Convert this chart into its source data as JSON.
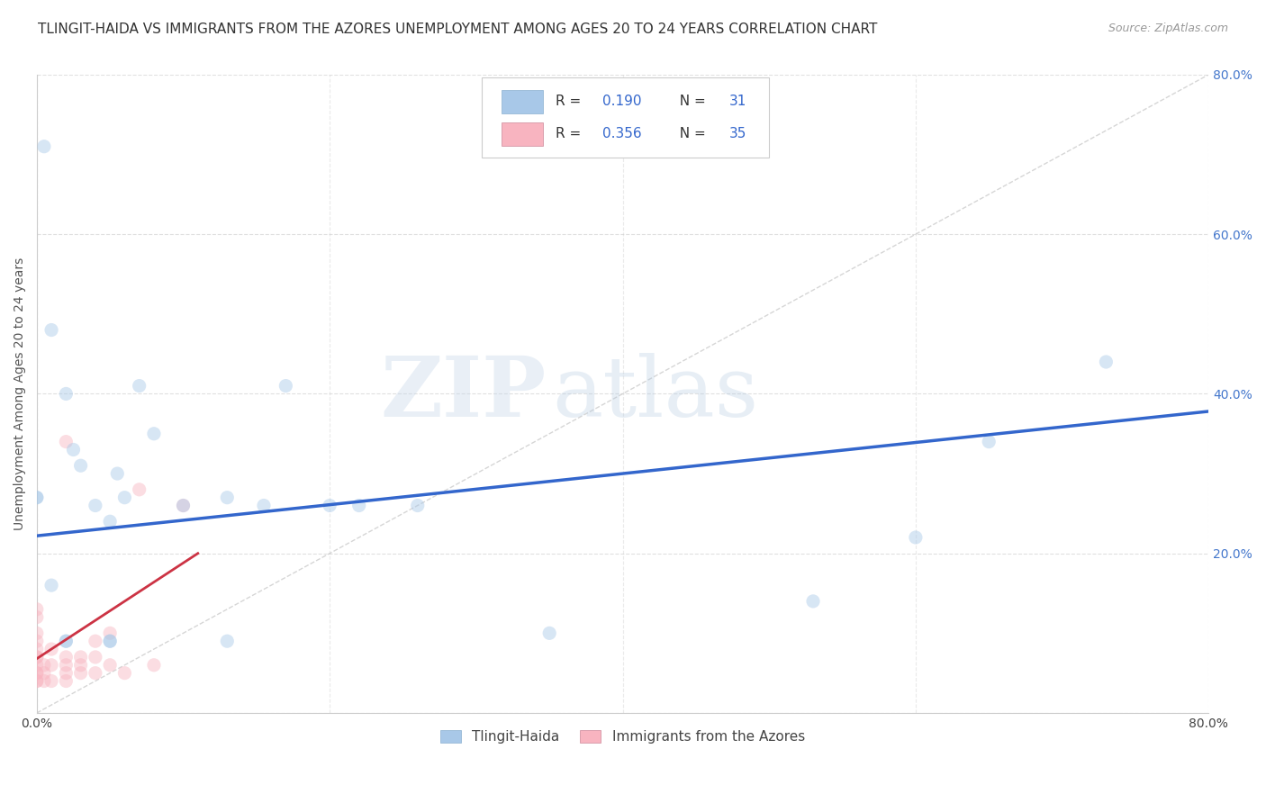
{
  "title": "TLINGIT-HAIDA VS IMMIGRANTS FROM THE AZORES UNEMPLOYMENT AMONG AGES 20 TO 24 YEARS CORRELATION CHART",
  "source": "Source: ZipAtlas.com",
  "ylabel": "Unemployment Among Ages 20 to 24 years",
  "xlim": [
    0,
    0.8
  ],
  "ylim": [
    0,
    0.8
  ],
  "xticks": [
    0.0,
    0.2,
    0.4,
    0.6,
    0.8
  ],
  "yticks": [
    0.0,
    0.2,
    0.4,
    0.6,
    0.8
  ],
  "xtick_labels": [
    "0.0%",
    "",
    "",
    "",
    "80.0%"
  ],
  "ytick_labels_left": [
    "",
    "",
    "",
    "",
    ""
  ],
  "ytick_labels_right": [
    "",
    "20.0%",
    "40.0%",
    "60.0%",
    "80.0%"
  ],
  "watermark_zip": "ZIP",
  "watermark_atlas": "atlas",
  "background_color": "#ffffff",
  "tlingit_haida": {
    "color": "#a8c8e8",
    "edge_color": "#6699cc",
    "regression_color": "#3366cc",
    "regression_intercept": 0.222,
    "regression_slope": 0.195,
    "points_x": [
      0.005,
      0.01,
      0.02,
      0.025,
      0.03,
      0.04,
      0.05,
      0.055,
      0.06,
      0.07,
      0.08,
      0.1,
      0.13,
      0.155,
      0.17,
      0.2,
      0.22,
      0.26,
      0.35,
      0.53,
      0.6,
      0.65,
      0.73,
      0.0,
      0.0,
      0.01,
      0.02,
      0.02,
      0.05,
      0.05,
      0.13
    ],
    "points_y": [
      0.71,
      0.48,
      0.4,
      0.33,
      0.31,
      0.26,
      0.24,
      0.3,
      0.27,
      0.41,
      0.35,
      0.26,
      0.27,
      0.26,
      0.41,
      0.26,
      0.26,
      0.26,
      0.1,
      0.14,
      0.22,
      0.34,
      0.44,
      0.27,
      0.27,
      0.16,
      0.09,
      0.09,
      0.09,
      0.09,
      0.09
    ]
  },
  "azores": {
    "color": "#f8b4c0",
    "edge_color": "#e07080",
    "regression_color": "#cc3344",
    "regression_intercept": 0.068,
    "regression_slope": 1.2,
    "points_x": [
      0.0,
      0.0,
      0.0,
      0.0,
      0.0,
      0.0,
      0.0,
      0.0,
      0.0,
      0.0,
      0.0,
      0.0,
      0.005,
      0.005,
      0.005,
      0.01,
      0.01,
      0.01,
      0.02,
      0.02,
      0.02,
      0.02,
      0.02,
      0.03,
      0.03,
      0.03,
      0.04,
      0.04,
      0.04,
      0.05,
      0.05,
      0.06,
      0.07,
      0.08,
      0.1
    ],
    "points_y": [
      0.04,
      0.04,
      0.05,
      0.05,
      0.06,
      0.07,
      0.07,
      0.08,
      0.09,
      0.1,
      0.12,
      0.13,
      0.04,
      0.05,
      0.06,
      0.04,
      0.06,
      0.08,
      0.04,
      0.05,
      0.06,
      0.07,
      0.34,
      0.05,
      0.06,
      0.07,
      0.05,
      0.07,
      0.09,
      0.06,
      0.1,
      0.05,
      0.28,
      0.06,
      0.26
    ]
  },
  "legend_label_blue": "Tlingit-Haida",
  "legend_label_pink": "Immigrants from the Azores",
  "grid_color": "#cccccc",
  "title_fontsize": 11,
  "label_fontsize": 10,
  "tick_fontsize": 10,
  "marker_size": 120,
  "marker_alpha": 0.45
}
